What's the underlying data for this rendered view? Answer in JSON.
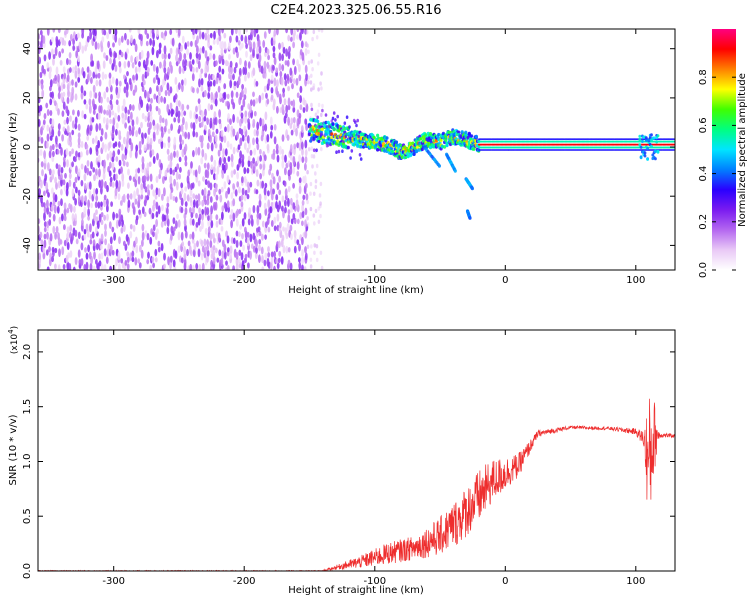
{
  "figure": {
    "title": "C2E4.2023.325.06.55.R16"
  },
  "chart_data": [
    {
      "type": "heatmap",
      "xlabel": "Height of straight line (km)",
      "ylabel": "Frequency (Hz)",
      "xlim": [
        -358,
        130
      ],
      "ylim": [
        -50,
        48
      ],
      "x_ticks": [
        -300,
        -200,
        -100,
        0,
        100
      ],
      "y_ticks": [
        -40,
        -20,
        0,
        20,
        40
      ],
      "x_tick_labels": [
        "-300",
        "-200",
        "-100",
        "0",
        "100"
      ],
      "y_tick_labels": [
        "-40",
        "-20",
        "0",
        "20",
        "40"
      ],
      "colorbar": {
        "label": "Normalized spectral amplitude",
        "range": [
          0,
          1
        ],
        "ticks": [
          0.0,
          0.2,
          0.4,
          0.6,
          0.8
        ],
        "tick_labels": [
          "0.0",
          "0.2",
          "0.4",
          "0.6",
          "0.8"
        ],
        "colors": [
          "#ffffff",
          "#e9c9f6",
          "#b467f0",
          "#7a1bf0",
          "#2a00ff",
          "#0080ff",
          "#00e5ff",
          "#00ff80",
          "#40ff00",
          "#ffff00",
          "#ff8000",
          "#ff0000",
          "#ff0080"
        ]
      },
      "regions": {
        "noise_x_range": [
          -358,
          -152
        ],
        "noise_freq_range": [
          -50,
          48
        ],
        "noise_amplitude": [
          0.05,
          0.25
        ],
        "transition_x_range": [
          -152,
          -140
        ],
        "signal_points": [
          {
            "x": -150,
            "f": 7
          },
          {
            "x": -140,
            "f": 6
          },
          {
            "x": -130,
            "f": 5
          },
          {
            "x": -120,
            "f": 4
          },
          {
            "x": -110,
            "f": 3
          },
          {
            "x": -100,
            "f": 2
          },
          {
            "x": -90,
            "f": 1
          },
          {
            "x": -80,
            "f": -2
          },
          {
            "x": -70,
            "f": 0
          },
          {
            "x": -60,
            "f": 3
          },
          {
            "x": -50,
            "f": 2
          },
          {
            "x": -40,
            "f": 4
          },
          {
            "x": -30,
            "f": 3
          },
          {
            "x": -20,
            "f": 1
          },
          {
            "x": 0,
            "f": 1
          },
          {
            "x": 40,
            "f": 1
          },
          {
            "x": 80,
            "f": 1
          },
          {
            "x": 110,
            "f": 0
          },
          {
            "x": 130,
            "f": 1
          }
        ],
        "signal_amplitude": [
          0.3,
          0.9
        ],
        "branches": [
          {
            "x": [
              -62,
              -50
            ],
            "f": [
              0,
              -8
            ]
          },
          {
            "x": [
              -45,
              -38
            ],
            "f": [
              -3,
              -10
            ]
          },
          {
            "x": [
              -30,
              -25
            ],
            "f": [
              -13,
              -17
            ]
          },
          {
            "x": [
              -29,
              -27
            ],
            "f": [
              -26,
              -29
            ]
          }
        ],
        "steady_line": {
          "x_range": [
            -20,
            130
          ],
          "f": 1,
          "amplitude": 0.92
        }
      }
    },
    {
      "type": "line",
      "color": "#ee2d2d",
      "xlabel": "Height of straight line (km)",
      "ylabel": "SNR (10 * v/v)",
      "y_multiplier_label": "(x10",
      "y_multiplier_exponent": "4",
      "y_multiplier_close": ")",
      "xlim": [
        -358,
        130
      ],
      "ylim": [
        0,
        2.2
      ],
      "x_ticks": [
        -300,
        -200,
        -100,
        0,
        100
      ],
      "y_ticks": [
        0.0,
        0.5,
        1.0,
        1.5,
        2.0
      ],
      "x_tick_labels": [
        "-300",
        "-200",
        "-100",
        "0",
        "100"
      ],
      "y_tick_labels": [
        "0.0",
        "0.5",
        "1.0",
        "1.5",
        "2.0"
      ],
      "envelope": [
        {
          "x": -358,
          "base": 0.0,
          "spread": 0.01
        },
        {
          "x": -140,
          "base": 0.0,
          "spread": 0.01
        },
        {
          "x": -130,
          "base": 0.03,
          "spread": 0.04
        },
        {
          "x": -110,
          "base": 0.08,
          "spread": 0.12
        },
        {
          "x": -90,
          "base": 0.15,
          "spread": 0.2
        },
        {
          "x": -70,
          "base": 0.2,
          "spread": 0.22
        },
        {
          "x": -50,
          "base": 0.3,
          "spread": 0.35
        },
        {
          "x": -35,
          "base": 0.45,
          "spread": 0.45
        },
        {
          "x": -20,
          "base": 0.65,
          "spread": 0.5
        },
        {
          "x": -10,
          "base": 0.8,
          "spread": 0.4
        },
        {
          "x": 10,
          "base": 0.95,
          "spread": 0.22
        },
        {
          "x": 25,
          "base": 1.25,
          "spread": 0.06
        },
        {
          "x": 50,
          "base": 1.31,
          "spread": 0.03
        },
        {
          "x": 80,
          "base": 1.3,
          "spread": 0.03
        },
        {
          "x": 100,
          "base": 1.27,
          "spread": 0.06
        },
        {
          "x": 106,
          "base": 1.2,
          "spread": 0.15
        },
        {
          "x": 110,
          "base": 0.9,
          "spread": 1.3
        },
        {
          "x": 114,
          "base": 1.2,
          "spread": 0.7
        },
        {
          "x": 118,
          "base": 1.24,
          "spread": 0.05
        },
        {
          "x": 130,
          "base": 1.23,
          "spread": 0.03
        }
      ]
    }
  ]
}
